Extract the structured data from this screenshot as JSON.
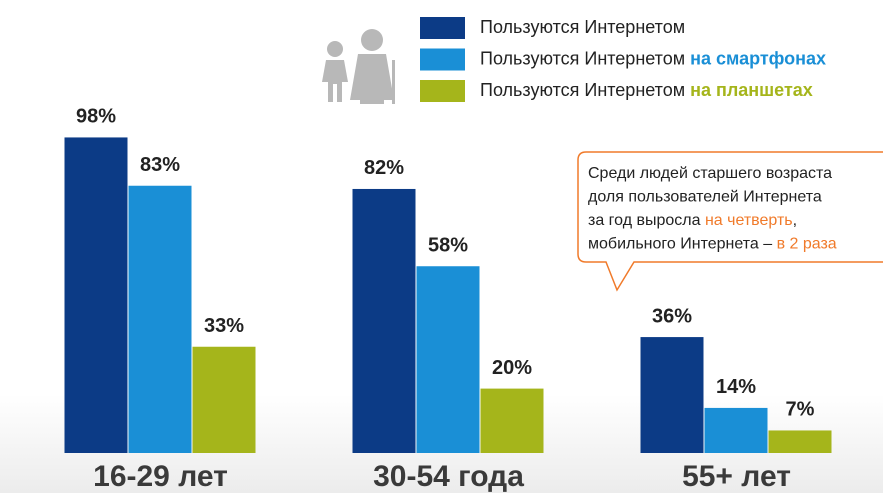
{
  "chart_data": {
    "type": "bar",
    "categories": [
      "16-29 лет",
      "30-54 года",
      "55+ лет"
    ],
    "ylim": [
      0,
      100
    ],
    "series": [
      {
        "name": "Пользуются Интернетом",
        "color": "#0c3b86",
        "values": [
          98,
          82,
          36
        ],
        "value_labels": [
          "98%",
          "82%",
          "36%"
        ]
      },
      {
        "name": "Пользуются Интернетом на смартфонах",
        "color": "#1a8fd6",
        "values": [
          83,
          58,
          14
        ],
        "value_labels": [
          "83%",
          "58%",
          "14%"
        ]
      },
      {
        "name": "Пользуются Интернетом на планшетах",
        "color": "#a5b51b",
        "values": [
          33,
          20,
          7
        ],
        "value_labels": [
          "33%",
          "20%",
          "7%"
        ]
      }
    ],
    "annotation": {
      "highlight_color": "#f07a2a",
      "lines": [
        [
          "Среди людей старшего возраста"
        ],
        [
          "доля пользователей Интернета"
        ],
        [
          "за год выросла ",
          "на четверть",
          ","
        ],
        [
          "мобильного Интернета – ",
          "в 2 раза"
        ]
      ]
    }
  }
}
